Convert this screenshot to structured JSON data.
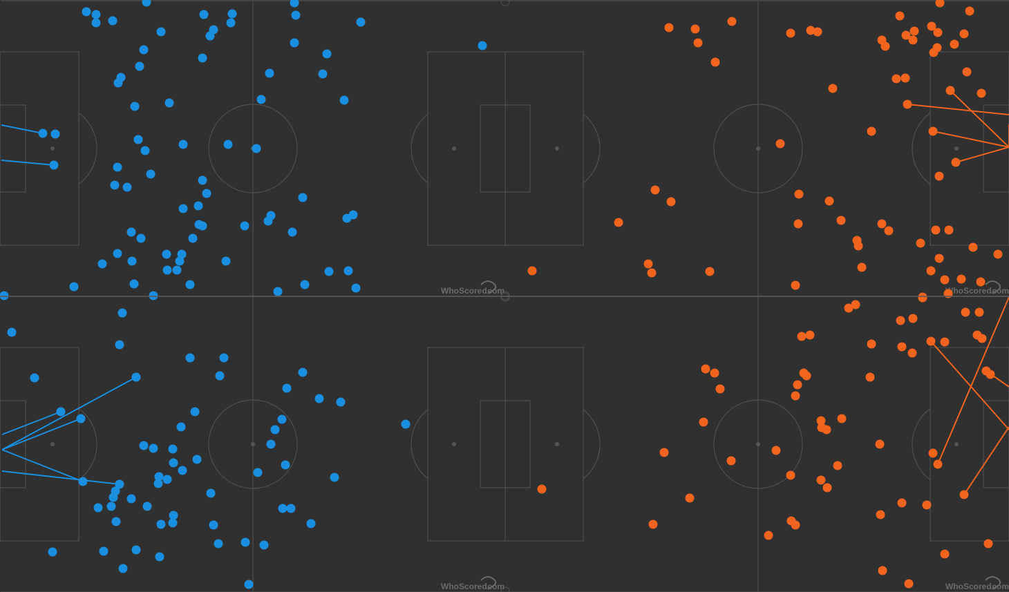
{
  "colors": {
    "background": "#303030",
    "home": "#1a8fe0",
    "away": "#f0641e",
    "pitch_lines": "#4f4f4f"
  },
  "branding": {
    "text": "WhoScored",
    "suffix": ".com"
  },
  "panels": [
    {
      "home": [
        [
          125,
          17
        ],
        [
          139,
          21
        ],
        [
          139,
          33
        ],
        [
          163,
          30
        ],
        [
          212,
          3
        ],
        [
          233,
          46
        ],
        [
          295,
          21
        ],
        [
          336,
          20
        ],
        [
          334,
          33
        ],
        [
          309,
          43
        ],
        [
          304,
          52
        ],
        [
          426,
          4
        ],
        [
          428,
          22
        ],
        [
          426,
          62
        ],
        [
          522,
          32
        ],
        [
          208,
          72
        ],
        [
          293,
          84
        ],
        [
          202,
          96
        ],
        [
          175,
          112
        ],
        [
          171,
          120
        ],
        [
          390,
          106
        ],
        [
          467,
          107
        ],
        [
          473,
          78
        ],
        [
          195,
          154
        ],
        [
          245,
          149
        ],
        [
          378,
          144
        ],
        [
          498,
          145
        ],
        [
          62,
          193
        ],
        [
          80,
          194
        ],
        [
          78,
          239
        ],
        [
          200,
          202
        ],
        [
          210,
          218
        ],
        [
          265,
          209
        ],
        [
          330,
          209
        ],
        [
          371,
          215
        ],
        [
          170,
          242
        ],
        [
          218,
          252
        ],
        [
          166,
          268
        ],
        [
          184,
          271
        ],
        [
          293,
          261
        ],
        [
          299,
          280
        ],
        [
          287,
          298
        ],
        [
          265,
          302
        ],
        [
          438,
          286
        ],
        [
          392,
          312
        ],
        [
          388,
          320
        ],
        [
          354,
          327
        ],
        [
          293,
          327
        ],
        [
          288,
          325
        ],
        [
          511,
          311
        ],
        [
          502,
          316
        ],
        [
          423,
          336
        ],
        [
          190,
          336
        ],
        [
          204,
          345
        ],
        [
          279,
          345
        ],
        [
          170,
          367
        ],
        [
          241,
          368
        ],
        [
          263,
          368
        ],
        [
          260,
          378
        ],
        [
          191,
          378
        ],
        [
          148,
          382
        ],
        [
          327,
          378
        ],
        [
          242,
          391
        ],
        [
          256,
          391
        ],
        [
          107,
          415
        ],
        [
          194,
          411
        ],
        [
          275,
          412
        ],
        [
          441,
          412
        ],
        [
          476,
          393
        ],
        [
          504,
          392
        ],
        [
          515,
          417
        ],
        [
          402,
          422
        ],
        [
          222,
          428
        ],
        [
          6,
          428
        ],
        [
          698,
          66
        ]
      ],
      "away": [
        [
          968,
          40
        ],
        [
          1006,
          42
        ],
        [
          1010,
          62
        ],
        [
          1059,
          31
        ],
        [
          1035,
          90
        ],
        [
          1144,
          48
        ],
        [
          1173,
          44
        ],
        [
          1183,
          46
        ],
        [
          1302,
          23
        ],
        [
          1348,
          38
        ],
        [
          1323,
          45
        ],
        [
          1357,
          47
        ],
        [
          1311,
          51
        ],
        [
          1276,
          58
        ],
        [
          1281,
          67
        ],
        [
          1321,
          58
        ],
        [
          1356,
          69
        ],
        [
          1351,
          76
        ],
        [
          1381,
          64
        ],
        [
          1395,
          49
        ],
        [
          1403,
          16
        ],
        [
          1360,
          4
        ],
        [
          1205,
          128
        ],
        [
          1297,
          114
        ],
        [
          1310,
          113
        ],
        [
          1399,
          104
        ],
        [
          1375,
          131
        ],
        [
          1420,
          135
        ],
        [
          1313,
          151
        ],
        [
          1261,
          190
        ],
        [
          1350,
          190
        ],
        [
          1383,
          235
        ],
        [
          1359,
          255
        ],
        [
          1129,
          208
        ],
        [
          948,
          275
        ],
        [
          971,
          292
        ],
        [
          1156,
          281
        ],
        [
          1200,
          291
        ],
        [
          895,
          322
        ],
        [
          1155,
          324
        ],
        [
          1217,
          319
        ],
        [
          1276,
          324
        ],
        [
          1286,
          334
        ],
        [
          1354,
          333
        ],
        [
          1373,
          333
        ],
        [
          1240,
          348
        ],
        [
          1242,
          356
        ],
        [
          1332,
          352
        ],
        [
          1408,
          358
        ],
        [
          1444,
          368
        ],
        [
          1359,
          374
        ],
        [
          1247,
          387
        ],
        [
          1347,
          392
        ],
        [
          1391,
          404
        ],
        [
          1367,
          405
        ],
        [
          1419,
          408
        ],
        [
          1151,
          413
        ],
        [
          770,
          392
        ],
        [
          938,
          382
        ],
        [
          943,
          395
        ],
        [
          1027,
          393
        ],
        [
          1335,
          430
        ],
        [
          1372,
          425
        ]
      ],
      "home_lines": [
        [
          [
            62,
            193
          ],
          [
            2,
            181
          ]
        ],
        [
          [
            78,
            239
          ],
          [
            2,
            232
          ]
        ]
      ],
      "away_lines": [
        [
          [
            1313,
            151
          ],
          [
            1460,
            166
          ]
        ],
        [
          [
            1375,
            131
          ],
          [
            1460,
            213
          ]
        ],
        [
          [
            1350,
            190
          ],
          [
            1460,
            213
          ]
        ],
        [
          [
            1383,
            235
          ],
          [
            1460,
            213
          ]
        ],
        [
          [
            1460,
            213
          ],
          [
            1460,
            180
          ]
        ]
      ]
    },
    {
      "home": [
        [
          177,
          453
        ],
        [
          17,
          481
        ],
        [
          173,
          499
        ],
        [
          50,
          547
        ],
        [
          197,
          546
        ],
        [
          275,
          518
        ],
        [
          324,
          518
        ],
        [
          318,
          544
        ],
        [
          438,
          539
        ],
        [
          415,
          562
        ],
        [
          462,
          577
        ],
        [
          493,
          582
        ],
        [
          88,
          596
        ],
        [
          117,
          606
        ],
        [
          282,
          596
        ],
        [
          408,
          607
        ],
        [
          398,
          622
        ],
        [
          262,
          618
        ],
        [
          392,
          643
        ],
        [
          208,
          645
        ],
        [
          222,
          649
        ],
        [
          250,
          650
        ],
        [
          285,
          665
        ],
        [
          251,
          670
        ],
        [
          413,
          673
        ],
        [
          264,
          681
        ],
        [
          373,
          684
        ],
        [
          230,
          690
        ],
        [
          242,
          694
        ],
        [
          229,
          700
        ],
        [
          484,
          691
        ],
        [
          120,
          697
        ],
        [
          173,
          701
        ],
        [
          167,
          711
        ],
        [
          164,
          720
        ],
        [
          190,
          722
        ],
        [
          305,
          714
        ],
        [
          142,
          735
        ],
        [
          161,
          733
        ],
        [
          213,
          733
        ],
        [
          409,
          736
        ],
        [
          421,
          736
        ],
        [
          251,
          746
        ],
        [
          250,
          757
        ],
        [
          233,
          759
        ],
        [
          168,
          755
        ],
        [
          309,
          760
        ],
        [
          450,
          758
        ],
        [
          587,
          614
        ],
        [
          355,
          785
        ],
        [
          316,
          787
        ],
        [
          382,
          789
        ],
        [
          76,
          799
        ],
        [
          150,
          798
        ],
        [
          197,
          796
        ],
        [
          231,
          806
        ],
        [
          178,
          823
        ],
        [
          360,
          846
        ]
      ],
      "away": [
        [
          1228,
          446
        ],
        [
          1238,
          441
        ],
        [
          1303,
          464
        ],
        [
          1321,
          461
        ],
        [
          1397,
          452
        ],
        [
          1417,
          452
        ],
        [
          1160,
          487
        ],
        [
          1172,
          485
        ],
        [
          1261,
          498
        ],
        [
          1305,
          502
        ],
        [
          1320,
          511
        ],
        [
          1347,
          494
        ],
        [
          1367,
          495
        ],
        [
          1414,
          485
        ],
        [
          1421,
          490
        ],
        [
          1021,
          534
        ],
        [
          1034,
          540
        ],
        [
          1163,
          540
        ],
        [
          1167,
          544
        ],
        [
          1259,
          546
        ],
        [
          1427,
          537
        ],
        [
          1433,
          542
        ],
        [
          1042,
          563
        ],
        [
          1154,
          557
        ],
        [
          1151,
          573
        ],
        [
          1018,
          611
        ],
        [
          1188,
          609
        ],
        [
          1189,
          619
        ],
        [
          1196,
          622
        ],
        [
          1218,
          606
        ],
        [
          1273,
          643
        ],
        [
          961,
          655
        ],
        [
          1058,
          667
        ],
        [
          1123,
          652
        ],
        [
          1350,
          656
        ],
        [
          1357,
          672
        ],
        [
          1212,
          674
        ],
        [
          1144,
          688
        ],
        [
          1188,
          695
        ],
        [
          1197,
          706
        ],
        [
          998,
          721
        ],
        [
          1395,
          716
        ],
        [
          1305,
          728
        ],
        [
          1341,
          731
        ],
        [
          1274,
          745
        ],
        [
          945,
          759
        ],
        [
          1145,
          754
        ],
        [
          1151,
          760
        ],
        [
          1112,
          775
        ],
        [
          1430,
          787
        ],
        [
          1367,
          802
        ],
        [
          1277,
          826
        ],
        [
          1315,
          845
        ],
        [
          784,
          708
        ],
        [
          1335,
          431
        ]
      ],
      "home_lines": [
        [
          [
            197,
            546
          ],
          [
            3,
            651
          ]
        ],
        [
          [
            117,
            606
          ],
          [
            3,
            651
          ]
        ],
        [
          [
            120,
            697
          ],
          [
            3,
            651
          ]
        ],
        [
          [
            173,
            701
          ],
          [
            3,
            682
          ]
        ],
        [
          [
            88,
            596
          ],
          [
            3,
            629
          ]
        ]
      ],
      "away_lines": [
        [
          [
            1347,
            494
          ],
          [
            1460,
            622
          ]
        ],
        [
          [
            1357,
            672
          ],
          [
            1460,
            430
          ]
        ],
        [
          [
            1395,
            716
          ],
          [
            1460,
            618
          ]
        ],
        [
          [
            1427,
            537
          ],
          [
            1460,
            560
          ]
        ]
      ]
    }
  ]
}
